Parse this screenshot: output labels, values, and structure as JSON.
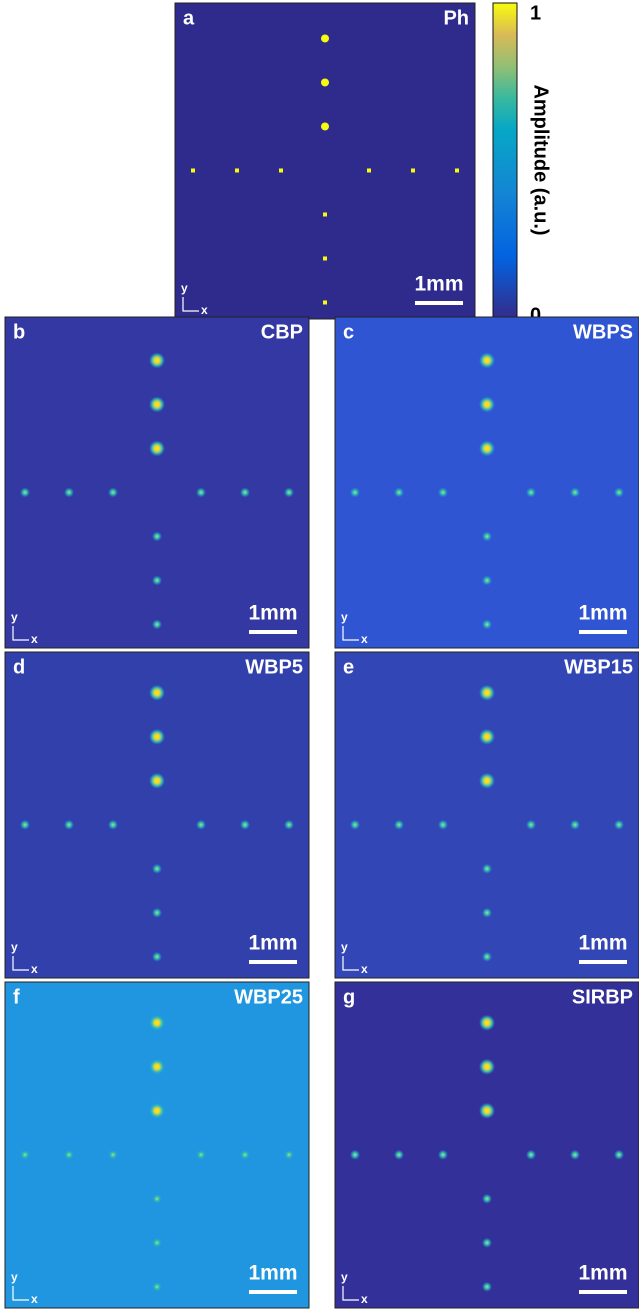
{
  "colorbar": {
    "label": "Amplitude (a.u.)",
    "ticks": [
      0,
      1
    ]
  },
  "panels": [
    {
      "letter": "a",
      "method": "Ph",
      "scale": "1mm",
      "axis_y": "y",
      "axis_x": "x"
    },
    {
      "letter": "b",
      "method": "CBP",
      "scale": "1mm",
      "axis_y": "y",
      "axis_x": "x"
    },
    {
      "letter": "c",
      "method": "WBPS",
      "scale": "1mm",
      "axis_y": "y",
      "axis_x": "x"
    },
    {
      "letter": "d",
      "method": "WBP5",
      "scale": "1mm",
      "axis_y": "y",
      "axis_x": "x"
    },
    {
      "letter": "e",
      "method": "WBP15",
      "scale": "1mm",
      "axis_y": "y",
      "axis_x": "x"
    },
    {
      "letter": "f",
      "method": "WBP25",
      "scale": "1mm",
      "axis_y": "y",
      "axis_x": "x"
    },
    {
      "letter": "g",
      "method": "SIRBP",
      "scale": "1mm",
      "axis_y": "y",
      "axis_x": "x"
    }
  ]
}
